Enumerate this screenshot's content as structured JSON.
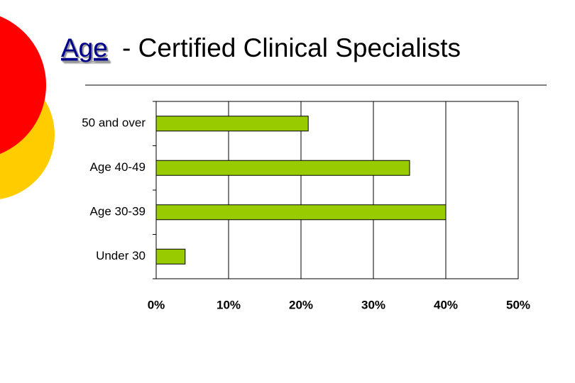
{
  "chart_data": {
    "type": "barh",
    "title_link": "Age",
    "title": "- Certified Clinical Specialists",
    "categories": [
      "50 and over",
      "Age 40-49",
      "Age 30-39",
      "Under 30"
    ],
    "values": [
      21,
      35,
      40,
      4
    ],
    "color": "#99cc00",
    "xlim": [
      0,
      50
    ],
    "xticks": [
      {
        "value": 0,
        "label": "0%"
      },
      {
        "value": 10,
        "label": "10%"
      },
      {
        "value": 20,
        "label": "20%"
      },
      {
        "value": 30,
        "label": "30%"
      },
      {
        "value": 40,
        "label": "40%"
      },
      {
        "value": 50,
        "label": "50%"
      }
    ],
    "grid": true
  }
}
